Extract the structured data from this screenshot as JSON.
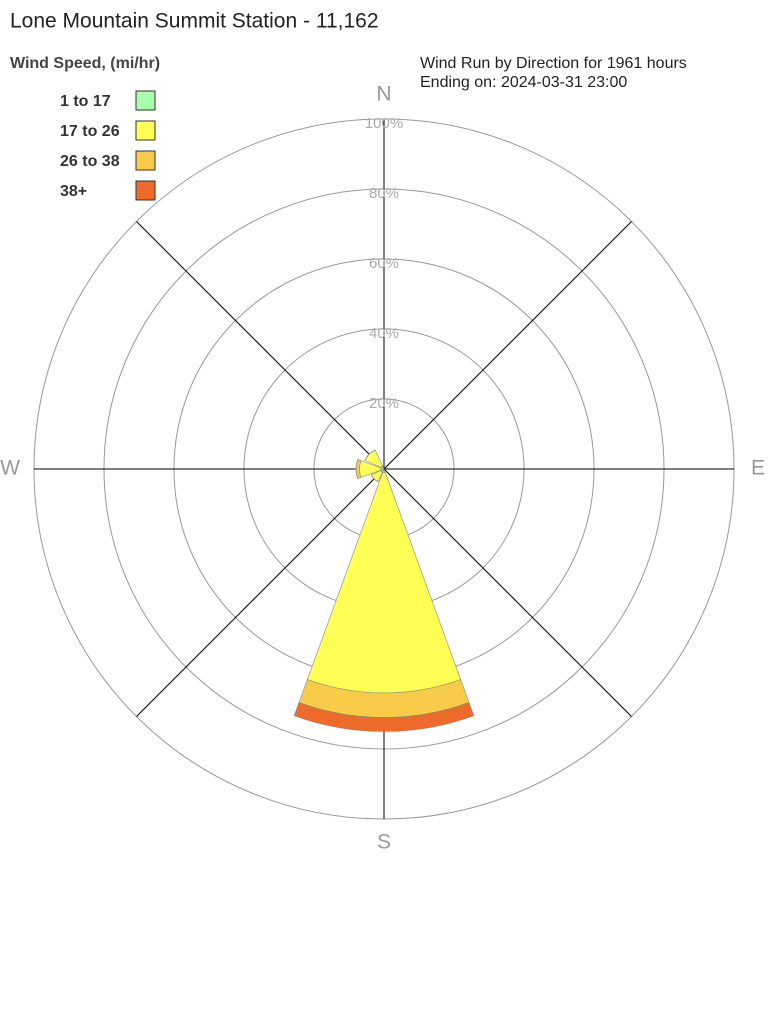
{
  "chart_data": {
    "type": "rose",
    "title": "Lone Mountain Summit Station - 11,162",
    "legend_title": "Wind Speed, (mi/hr)",
    "subtitle": [
      "Wind Run by Direction for 1961 hours",
      "Ending on: 2024-03-31 23:00"
    ],
    "categories": [
      "N",
      null,
      "E",
      null,
      "S",
      null,
      "W",
      null
    ],
    "series": [
      {
        "name": "1 to 17",
        "color": "#aaffaa",
        "values": [
          0,
          0,
          0,
          0,
          1,
          1,
          1,
          1
        ]
      },
      {
        "name": "17 to 26",
        "color": "#ffff55",
        "values": [
          0,
          0,
          0,
          0,
          63,
          3,
          6,
          5
        ]
      },
      {
        "name": "26 to 38",
        "color": "#f8cc48",
        "values": [
          0,
          0,
          0,
          0,
          7,
          0,
          1,
          0
        ]
      },
      {
        "name": "38+",
        "color": "#ee6a2a",
        "values": [
          0,
          0,
          0,
          0,
          4,
          0,
          0,
          0
        ]
      }
    ],
    "rlim": [
      0,
      100
    ],
    "rticks": [
      {
        "value": 20,
        "label": "20%"
      },
      {
        "value": 40,
        "label": "40%"
      },
      {
        "value": 60,
        "label": "60%"
      },
      {
        "value": 80,
        "label": "80%"
      },
      {
        "value": 100,
        "label": "100%"
      }
    ],
    "grid": true
  }
}
